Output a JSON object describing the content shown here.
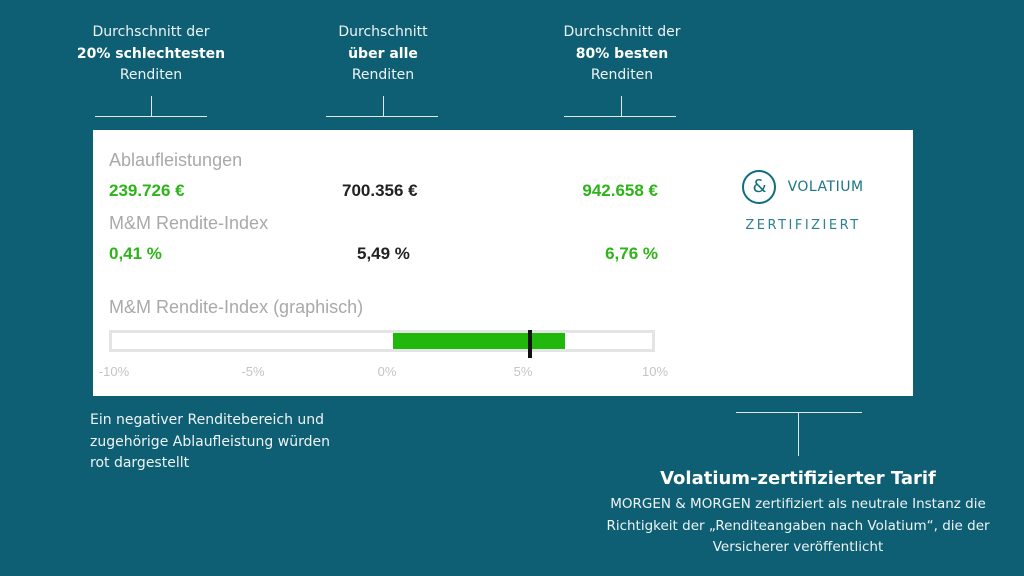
{
  "callouts": {
    "worst": {
      "line1": "Durchschnitt der",
      "line2": "20% schlechtesten",
      "line3": "Renditen"
    },
    "all": {
      "line1": "Durchschnitt",
      "line2": "über alle",
      "line3": "Renditen"
    },
    "best": {
      "line1": "Durchschnitt der",
      "line2": "80% besten",
      "line3": "Renditen"
    }
  },
  "card": {
    "ablauf_label": "Ablaufleistungen",
    "ablauf_values": [
      "239.726 €",
      "700.356 €",
      "942.658 €"
    ],
    "rendite_label": "M&M Rendite-Index",
    "rendite_values": [
      "0,41 %",
      "5,49 %",
      "6,76 %"
    ],
    "graph_label": "M&M Rendite-Index (graphisch)"
  },
  "chart_data": {
    "type": "bar",
    "x_ticks": [
      "-10%",
      "-5%",
      "0%",
      "5%",
      "10%"
    ],
    "xlim": [
      -10,
      10
    ],
    "range_low": 0.41,
    "range_high": 6.76,
    "marker": 5.49,
    "fill_color": "#21b80e"
  },
  "logo": {
    "symbol": "&",
    "name": "VOLATIUM",
    "cert": "ZERTIFIZIERT"
  },
  "note": "Ein negativer Renditebereich und zugehörige Ablaufleistung würden rot dargestellt",
  "tarif": {
    "title": "Volatium-zertifizierter Tarif",
    "text": "MORGEN & MORGEN zertifiziert als neutrale Instanz die Richtigkeit der „Renditeangaben nach Volatium“, die der Versicherer veröffentlicht"
  }
}
